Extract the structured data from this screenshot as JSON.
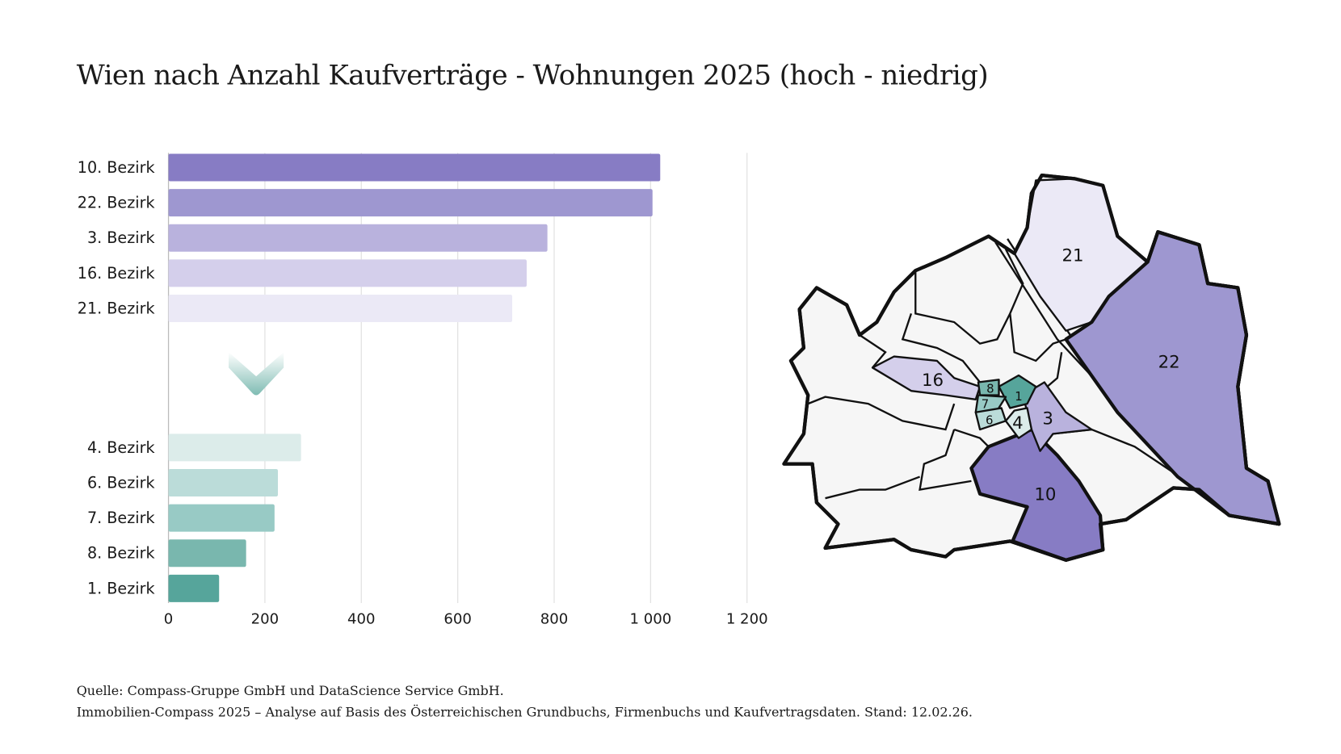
{
  "title": "Wien nach Anzahl Kaufverträge - Wohnungen 2025 (hoch - niedrig)",
  "footer": {
    "source": "Quelle: Compass-Gruppe GmbH und DataScience Service GmbH.",
    "note": "Immobilien-Compass 2025 – Analyse auf Basis des Österreichischen Grundbuchs, Firmenbuchs und Kaufvertragsdaten. Stand: 12.02.26."
  },
  "chart_data": {
    "type": "bar",
    "orientation": "horizontal",
    "title": "Wien nach Anzahl Kaufverträge - Wohnungen 2025 (hoch - niedrig)",
    "groups": [
      {
        "group": "top",
        "categories": [
          "10. Bezirk",
          "22. Bezirk",
          "3. Bezirk",
          "16. Bezirk",
          "21. Bezirk"
        ],
        "values": [
          1020,
          1004,
          786,
          743,
          713
        ],
        "colors": [
          "#877cc4",
          "#9e97d0",
          "#b9b2dd",
          "#d4cfeb",
          "#ebe9f6"
        ]
      },
      {
        "group": "bottom",
        "categories": [
          "4. Bezirk",
          "6. Bezirk",
          "7. Bezirk",
          "8. Bezirk",
          "1. Bezirk"
        ],
        "values": [
          275,
          227,
          220,
          161,
          105
        ],
        "colors": [
          "#dcecea",
          "#bbdcd9",
          "#98cac5",
          "#79b7ae",
          "#56a59b"
        ]
      }
    ],
    "xlim": [
      0,
      1200
    ],
    "xticks": [
      0,
      200,
      400,
      600,
      800,
      1000,
      1200
    ],
    "xtick_labels": [
      "0",
      "200",
      "400",
      "600",
      "800",
      "1 000",
      "1 200"
    ],
    "grid": true,
    "separator_icon": "chevron-down-icon"
  },
  "map": {
    "default_fill": "#f6f6f6",
    "districts": [
      {
        "label": "21",
        "fill": "#ebe9f6"
      },
      {
        "label": "22",
        "fill": "#9e97d0"
      },
      {
        "label": "10",
        "fill": "#877cc4"
      },
      {
        "label": "3",
        "fill": "#b9b2dd"
      },
      {
        "label": "16",
        "fill": "#d4cfeb"
      },
      {
        "label": "1",
        "fill": "#56a59b"
      },
      {
        "label": "8",
        "fill": "#79b7ae"
      },
      {
        "label": "7",
        "fill": "#98cac5"
      },
      {
        "label": "6",
        "fill": "#bbdcd9"
      },
      {
        "label": "4",
        "fill": "#dcecea"
      }
    ]
  }
}
